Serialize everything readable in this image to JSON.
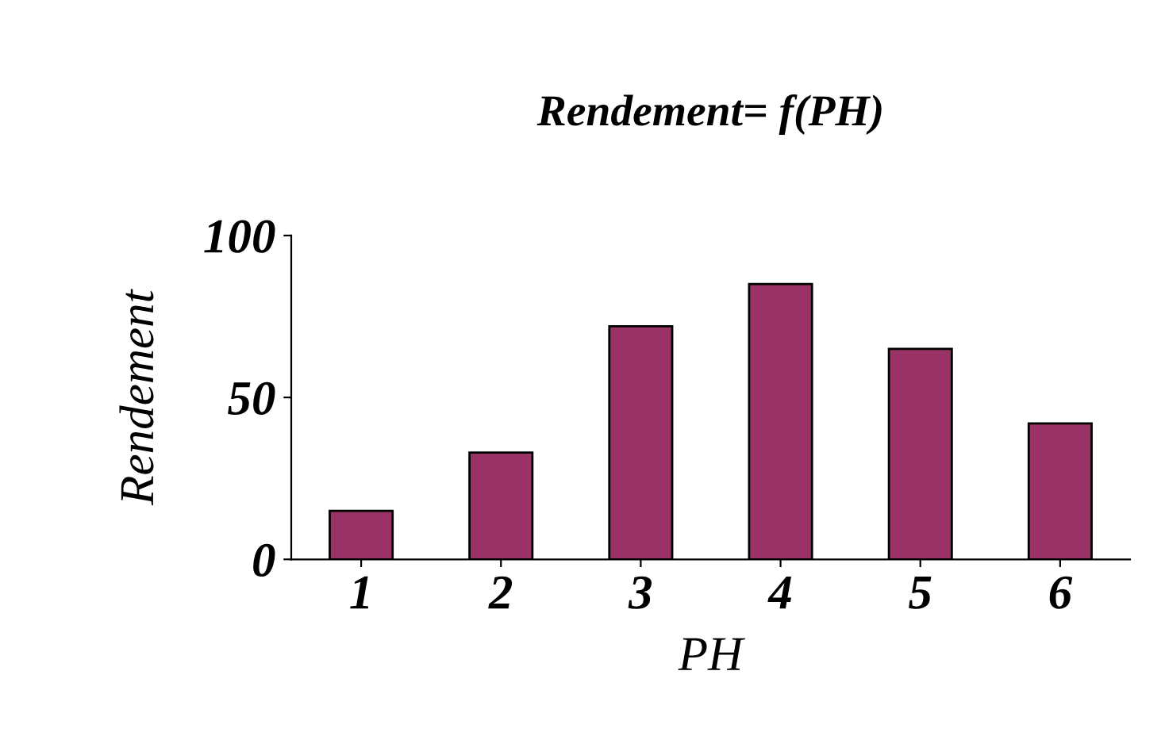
{
  "chart_data": {
    "type": "bar",
    "title": "Rendement= f(PH)",
    "xlabel": "PH",
    "ylabel": "Rendement",
    "categories": [
      "1",
      "2",
      "3",
      "4",
      "5",
      "6"
    ],
    "values": [
      15,
      33,
      72,
      85,
      65,
      42
    ],
    "color": "#993366",
    "ylim": [
      0,
      100
    ],
    "yticks": [
      0,
      50,
      100
    ],
    "grid": false,
    "legend": false
  }
}
